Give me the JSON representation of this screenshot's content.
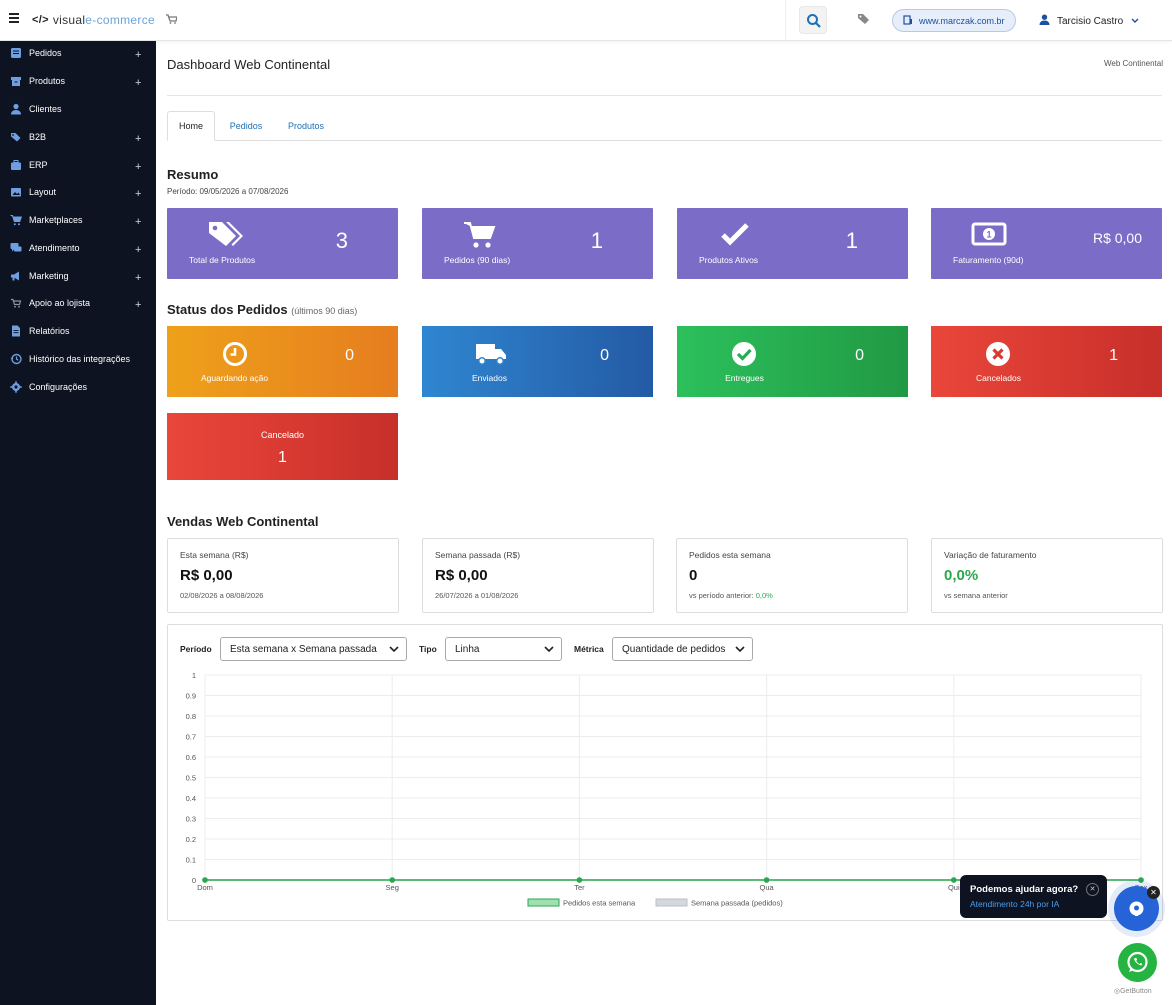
{
  "header": {
    "logo_code": "</>",
    "logo_visual": "visual",
    "logo_ecommerce": " e-commerce",
    "site_url": "www.marczak.com.br",
    "user_name": "Tarcisio Castro"
  },
  "sidebar": {
    "items": [
      {
        "label": "Pedidos",
        "icon": "orders-icon",
        "plus": "+"
      },
      {
        "label": "Produtos",
        "icon": "products-icon",
        "plus": "+"
      },
      {
        "label": "Clientes",
        "icon": "user-icon",
        "plus": ""
      },
      {
        "label": "B2B",
        "icon": "tags-icon",
        "plus": "+"
      },
      {
        "label": "ERP",
        "icon": "briefcase-icon",
        "plus": "+"
      },
      {
        "label": "Layout",
        "icon": "image-icon",
        "plus": "+"
      },
      {
        "label": "Marketplaces",
        "icon": "cart-icon",
        "plus": "+"
      },
      {
        "label": "Atendimento",
        "icon": "chat-icon",
        "plus": "+"
      },
      {
        "label": "Marketing",
        "icon": "megaphone-icon",
        "plus": "+"
      },
      {
        "label": "Apoio ao lojista",
        "icon": "cart-small-icon",
        "plus": "+"
      },
      {
        "label": "Relatórios",
        "icon": "report-icon",
        "plus": ""
      },
      {
        "label": "Histórico das integrações",
        "icon": "history-icon",
        "plus": ""
      },
      {
        "label": "Configurações",
        "icon": "gear-icon",
        "plus": ""
      }
    ]
  },
  "page": {
    "title": "Dashboard Web Continental",
    "breadcrumb": "Web Continental",
    "tabs": [
      "Home",
      "Pedidos",
      "Produtos"
    ]
  },
  "resumo": {
    "title": "Resumo",
    "period": "Período: 09/05/2026 a 07/08/2026",
    "cards": [
      {
        "label": "Total de Produtos",
        "value": "3",
        "icon": "tags-icon"
      },
      {
        "label": "Pedidos (90 dias)",
        "value": "1",
        "icon": "cart-icon"
      },
      {
        "label": "Produtos Ativos",
        "value": "1",
        "icon": "check-icon"
      },
      {
        "label": "Faturamento (90d)",
        "value": "R$ 0,00",
        "icon": "money-icon"
      }
    ]
  },
  "status": {
    "title": "Status dos Pedidos",
    "subtitle": "(últimos 90 dias)",
    "cards": [
      {
        "label": "Aguardando ação",
        "value": "0",
        "icon": "clock-icon",
        "color": "#eea11a"
      },
      {
        "label": "Enviados",
        "value": "0",
        "icon": "truck-icon",
        "color": "#2f86d0"
      },
      {
        "label": "Entregues",
        "value": "0",
        "icon": "check-circle-icon",
        "color": "#2cc05c"
      },
      {
        "label": "Cancelados",
        "value": "1",
        "icon": "x-circle-icon",
        "color": "#ea463a"
      }
    ],
    "extra": {
      "label": "Cancelado",
      "value": "1"
    }
  },
  "vendas": {
    "title": "Vendas Web Continental",
    "kpis": [
      {
        "title": "Esta semana (R$)",
        "value": "R$ 0,00",
        "sub": "02/08/2026 a 08/08/2026"
      },
      {
        "title": "Semana passada (R$)",
        "value": "R$ 0,00",
        "sub": "26/07/2026 a 01/08/2026"
      },
      {
        "title": "Pedidos esta semana",
        "value": "0",
        "sub": "vs período anterior: ",
        "sub_value": "0,0%"
      },
      {
        "title": "Variação de faturamento",
        "value": "0,0%",
        "sub": "vs semana anterior"
      }
    ],
    "filters": {
      "periodo_label": "Período",
      "periodo_value": "Esta semana x Semana passada",
      "tipo_label": "Tipo",
      "tipo_value": "Linha",
      "metrica_label": "Métrica",
      "metrica_value": "Quantidade de pedidos"
    }
  },
  "chart_data": {
    "type": "line",
    "categories": [
      "Dom",
      "Seg",
      "Ter",
      "Qua",
      "Qui",
      "Sex"
    ],
    "ylim": [
      0,
      1
    ],
    "yticks": [
      "0",
      "0.1",
      "0.2",
      "0.3",
      "0.4",
      "0.5",
      "0.6",
      "0.7",
      "0.8",
      "0.9",
      "1"
    ],
    "series": [
      {
        "name": "Pedidos esta semana",
        "values": [
          0,
          0,
          0,
          0,
          0,
          0
        ],
        "color": "#2aa84d"
      },
      {
        "name": "Semana passada (pedidos)",
        "values": [
          0,
          0,
          0,
          0,
          0,
          0
        ],
        "color": "#b9c0c8"
      }
    ],
    "grid": true,
    "legend": "bottom"
  },
  "help": {
    "title": "Podemos ajudar agora?",
    "subtitle": "Atendimento 24h por IA",
    "getbutton": "GetButton"
  }
}
